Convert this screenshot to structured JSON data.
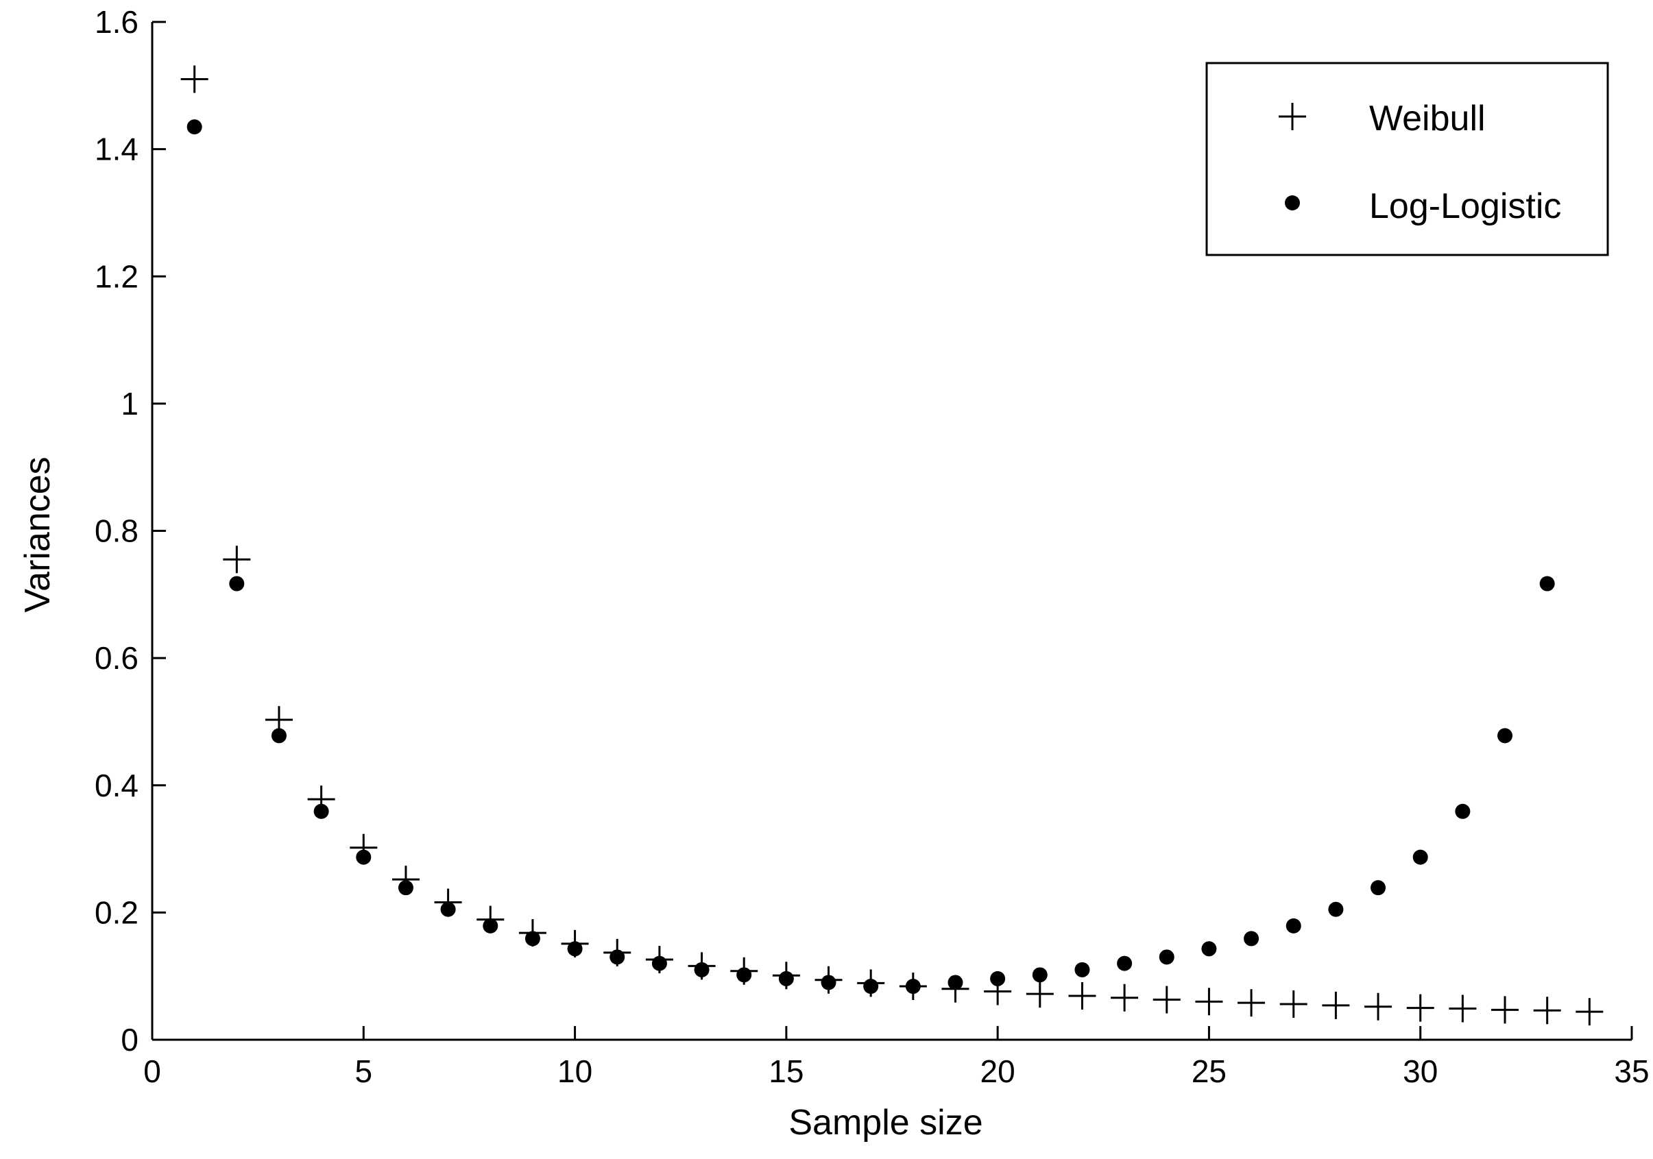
{
  "chart_data": {
    "type": "scatter",
    "xlabel": "Sample size",
    "ylabel": "Variances",
    "xlim": [
      0,
      35
    ],
    "ylim": [
      0,
      1.6
    ],
    "xticks": [
      0,
      5,
      10,
      15,
      20,
      25,
      30,
      35
    ],
    "xtick_labels": [
      "0",
      "5",
      "10",
      "15",
      "20",
      "25",
      "30",
      "35"
    ],
    "yticks": [
      0,
      0.2,
      0.4,
      0.6,
      0.8,
      1.0,
      1.2,
      1.4,
      1.6
    ],
    "ytick_labels": [
      "0",
      "0.2",
      "0.4",
      "0.6",
      "0.8",
      "1",
      "1.2",
      "1.4",
      "1.6"
    ],
    "grid": false,
    "legend_position": "top-right",
    "series": [
      {
        "name": "Weibull",
        "marker": "plus",
        "color": "#000000",
        "x": [
          1,
          2,
          3,
          4,
          5,
          6,
          7,
          8,
          9,
          10,
          11,
          12,
          13,
          14,
          15,
          16,
          17,
          18,
          19,
          20,
          21,
          22,
          23,
          24,
          25,
          26,
          27,
          28,
          29,
          30,
          31,
          32,
          33,
          34
        ],
        "y": [
          1.51,
          0.755,
          0.503,
          0.378,
          0.302,
          0.252,
          0.216,
          0.189,
          0.168,
          0.151,
          0.137,
          0.126,
          0.116,
          0.108,
          0.101,
          0.094,
          0.089,
          0.084,
          0.08,
          0.076,
          0.072,
          0.069,
          0.066,
          0.063,
          0.06,
          0.058,
          0.056,
          0.054,
          0.052,
          0.05,
          0.049,
          0.047,
          0.046,
          0.044
        ]
      },
      {
        "name": "Log-Logistic",
        "marker": "dot",
        "color": "#000000",
        "x": [
          1,
          2,
          3,
          4,
          5,
          6,
          7,
          8,
          9,
          10,
          11,
          12,
          13,
          14,
          15,
          16,
          17,
          18,
          19,
          20,
          21,
          22,
          23,
          24,
          25,
          26,
          27,
          28,
          29,
          30,
          31,
          32,
          33
        ],
        "y": [
          1.435,
          0.717,
          0.478,
          0.359,
          0.287,
          0.239,
          0.205,
          0.179,
          0.159,
          0.143,
          0.13,
          0.12,
          0.11,
          0.102,
          0.096,
          0.09,
          0.084,
          0.084,
          0.09,
          0.096,
          0.102,
          0.11,
          0.12,
          0.13,
          0.143,
          0.159,
          0.179,
          0.205,
          0.239,
          0.287,
          0.359,
          0.478,
          0.717
        ]
      }
    ]
  }
}
